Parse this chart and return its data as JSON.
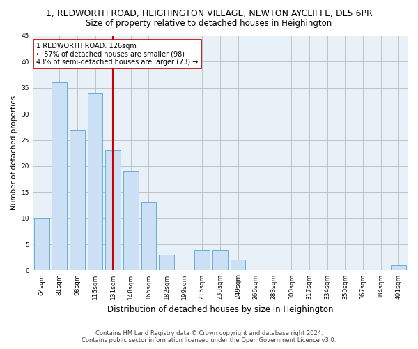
{
  "title": "1, REDWORTH ROAD, HEIGHINGTON VILLAGE, NEWTON AYCLIFFE, DL5 6PR",
  "subtitle": "Size of property relative to detached houses in Heighington",
  "xlabel": "Distribution of detached houses by size in Heighington",
  "ylabel": "Number of detached properties",
  "categories": [
    "64sqm",
    "81sqm",
    "98sqm",
    "115sqm",
    "131sqm",
    "148sqm",
    "165sqm",
    "182sqm",
    "199sqm",
    "216sqm",
    "233sqm",
    "249sqm",
    "266sqm",
    "283sqm",
    "300sqm",
    "317sqm",
    "334sqm",
    "350sqm",
    "367sqm",
    "384sqm",
    "401sqm"
  ],
  "values": [
    10,
    36,
    27,
    34,
    23,
    19,
    13,
    3,
    0,
    4,
    4,
    2,
    0,
    0,
    0,
    0,
    0,
    0,
    0,
    0,
    1
  ],
  "bar_color": "#cce0f5",
  "bar_edge_color": "#6aaed6",
  "vline_color": "#cc0000",
  "annotation_text": "1 REDWORTH ROAD: 126sqm\n← 57% of detached houses are smaller (98)\n43% of semi-detached houses are larger (73) →",
  "annotation_box_color": "#ffffff",
  "annotation_box_edge": "#cc0000",
  "ylim": [
    0,
    45
  ],
  "yticks": [
    0,
    5,
    10,
    15,
    20,
    25,
    30,
    35,
    40,
    45
  ],
  "grid_color": "#bbbbbb",
  "bg_color": "#ffffff",
  "plot_bg_color": "#e8f0f8",
  "footer": "Contains HM Land Registry data © Crown copyright and database right 2024.\nContains public sector information licensed under the Open Government Licence v3.0.",
  "title_fontsize": 9,
  "subtitle_fontsize": 8.5,
  "xlabel_fontsize": 8.5,
  "ylabel_fontsize": 7.5,
  "tick_fontsize": 6.5,
  "annotation_fontsize": 7,
  "footer_fontsize": 6
}
